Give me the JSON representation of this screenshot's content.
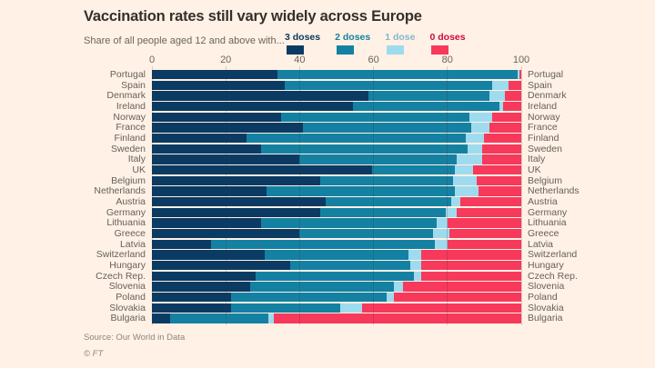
{
  "title": "Vaccination rates still vary widely across Europe",
  "subtitle": "Share of all people aged 12 and above with...",
  "source": "Source: Our World in Data",
  "footer_mark": "© FT",
  "colors": {
    "background": "#FFF1E5",
    "title_text": "#33302C",
    "muted_text": "#6B645C",
    "label_text": "#66605B",
    "source_text": "#8D867D",
    "dose3": "#0B3B63",
    "dose2": "#1581A2",
    "dose1": "#9FDBEE",
    "dose0": "#F7395C"
  },
  "chart_data": {
    "type": "bar",
    "stacked": true,
    "orientation": "horizontal",
    "title": "Vaccination rates still vary widely across Europe",
    "subtitle": "Share of all people aged 12 and above with...",
    "x_axis": {
      "range": [
        0,
        100
      ],
      "ticks": [
        0,
        20,
        40,
        60,
        80,
        100
      ],
      "grid": true
    },
    "legend_position": "top",
    "series": [
      {
        "name": "3 doses",
        "color": "#0B3B63",
        "label_color": "#0B3B63"
      },
      {
        "name": "2 doses",
        "color": "#1581A2",
        "label_color": "#1581A2"
      },
      {
        "name": "1 dose",
        "color": "#9FDBEE",
        "label_color": "#82B9CE"
      },
      {
        "name": "0 doses",
        "color": "#F7395C",
        "label_color": "#CE0A3C"
      }
    ],
    "rows": [
      {
        "country": "Portugal",
        "segments": [
          34,
          65,
          0.5,
          0.5
        ]
      },
      {
        "country": "Spain",
        "segments": [
          36,
          56,
          4.5,
          3.5
        ]
      },
      {
        "country": "Denmark",
        "segments": [
          58.5,
          33,
          4,
          4.5
        ]
      },
      {
        "country": "Ireland",
        "segments": [
          54.5,
          39.5,
          1,
          5
        ]
      },
      {
        "country": "Norway",
        "segments": [
          35,
          51,
          6,
          8
        ]
      },
      {
        "country": "France",
        "segments": [
          41,
          45.5,
          5,
          8.5
        ]
      },
      {
        "country": "Finland",
        "segments": [
          25.5,
          59.5,
          5,
          10
        ]
      },
      {
        "country": "Sweden",
        "segments": [
          29.5,
          56,
          4,
          10.5
        ]
      },
      {
        "country": "Italy",
        "segments": [
          40,
          42.5,
          7,
          10.5
        ]
      },
      {
        "country": "UK",
        "segments": [
          59.5,
          22.5,
          5,
          13
        ]
      },
      {
        "country": "Belgium",
        "segments": [
          45.5,
          36,
          6.5,
          12
        ]
      },
      {
        "country": "Netherlands",
        "segments": [
          31,
          51,
          6.5,
          11.5
        ]
      },
      {
        "country": "Austria",
        "segments": [
          47,
          34,
          2.5,
          16.5
        ]
      },
      {
        "country": "Germany",
        "segments": [
          45.5,
          34,
          3,
          17.5
        ]
      },
      {
        "country": "Lithuania",
        "segments": [
          29.5,
          47.5,
          3,
          20
        ]
      },
      {
        "country": "Greece",
        "segments": [
          40,
          36,
          4.5,
          19.5
        ]
      },
      {
        "country": "Latvia",
        "segments": [
          16,
          60.5,
          3.5,
          20
        ]
      },
      {
        "country": "Switzerland",
        "segments": [
          30.5,
          39,
          3.5,
          27
        ]
      },
      {
        "country": "Hungary",
        "segments": [
          37.5,
          32.5,
          3,
          27
        ]
      },
      {
        "country": "Czech Rep.",
        "segments": [
          28,
          43,
          2,
          27
        ]
      },
      {
        "country": "Slovenia",
        "segments": [
          26.5,
          39,
          2.5,
          32
        ]
      },
      {
        "country": "Poland",
        "segments": [
          21.5,
          42,
          2,
          34.5
        ]
      },
      {
        "country": "Slovakia",
        "segments": [
          21.5,
          29.5,
          6,
          43
        ]
      },
      {
        "country": "Bulgaria",
        "segments": [
          5,
          26.5,
          1.5,
          67
        ]
      }
    ]
  }
}
